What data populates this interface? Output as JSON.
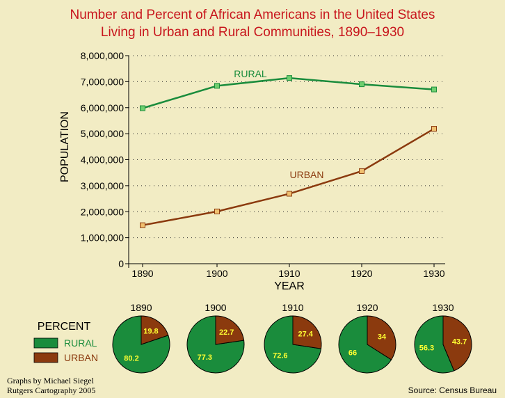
{
  "title_line1": "Number and Percent of African Americans in the United States",
  "title_line2": "Living in Urban and Rural Communities, 1890–1930",
  "colors": {
    "title": "#c8161d",
    "rural": "#1a8c3c",
    "urban": "#8b3a0e",
    "rural_marker": "#6fcf6f",
    "urban_marker": "#f0c070",
    "background": "#f2ecc4",
    "pie_label": "#ffff33"
  },
  "credit_line1": "Graphs by Michael Siegel",
  "credit_line2": "Rutgers Cartography 2005",
  "source": "Source: Census Bureau",
  "chart_data": [
    {
      "type": "line",
      "xlabel": "YEAR",
      "ylabel": "POPULATION",
      "x": [
        1890,
        1900,
        1910,
        1920,
        1930
      ],
      "xticks": [
        "1890",
        "1900",
        "1910",
        "1920",
        "1930"
      ],
      "ylim": [
        0,
        8000000
      ],
      "yticks": [
        "0",
        "1,000,000",
        "2,000,000",
        "3,000,000",
        "4,000,000",
        "5,000,000",
        "6,000,000",
        "7,000,000",
        "8,000,000"
      ],
      "grid": "horizontal dotted",
      "series": [
        {
          "name": "RURAL",
          "values": [
            5980000,
            6840000,
            7140000,
            6900000,
            6700000
          ]
        },
        {
          "name": "URBAN",
          "values": [
            1480000,
            2010000,
            2690000,
            3560000,
            5190000
          ]
        }
      ]
    },
    {
      "type": "pie",
      "title": "PERCENT",
      "legend": [
        "RURAL",
        "URBAN"
      ],
      "pies": [
        {
          "label": "1890",
          "rural": "80.2",
          "urban": "19.8"
        },
        {
          "label": "1900",
          "rural": "77.3",
          "urban": "22.7"
        },
        {
          "label": "1910",
          "rural": "72.6",
          "urban": "27.4"
        },
        {
          "label": "1920",
          "rural": "66",
          "urban": "34"
        },
        {
          "label": "1930",
          "rural": "56.3",
          "urban": "43.7"
        }
      ]
    }
  ]
}
